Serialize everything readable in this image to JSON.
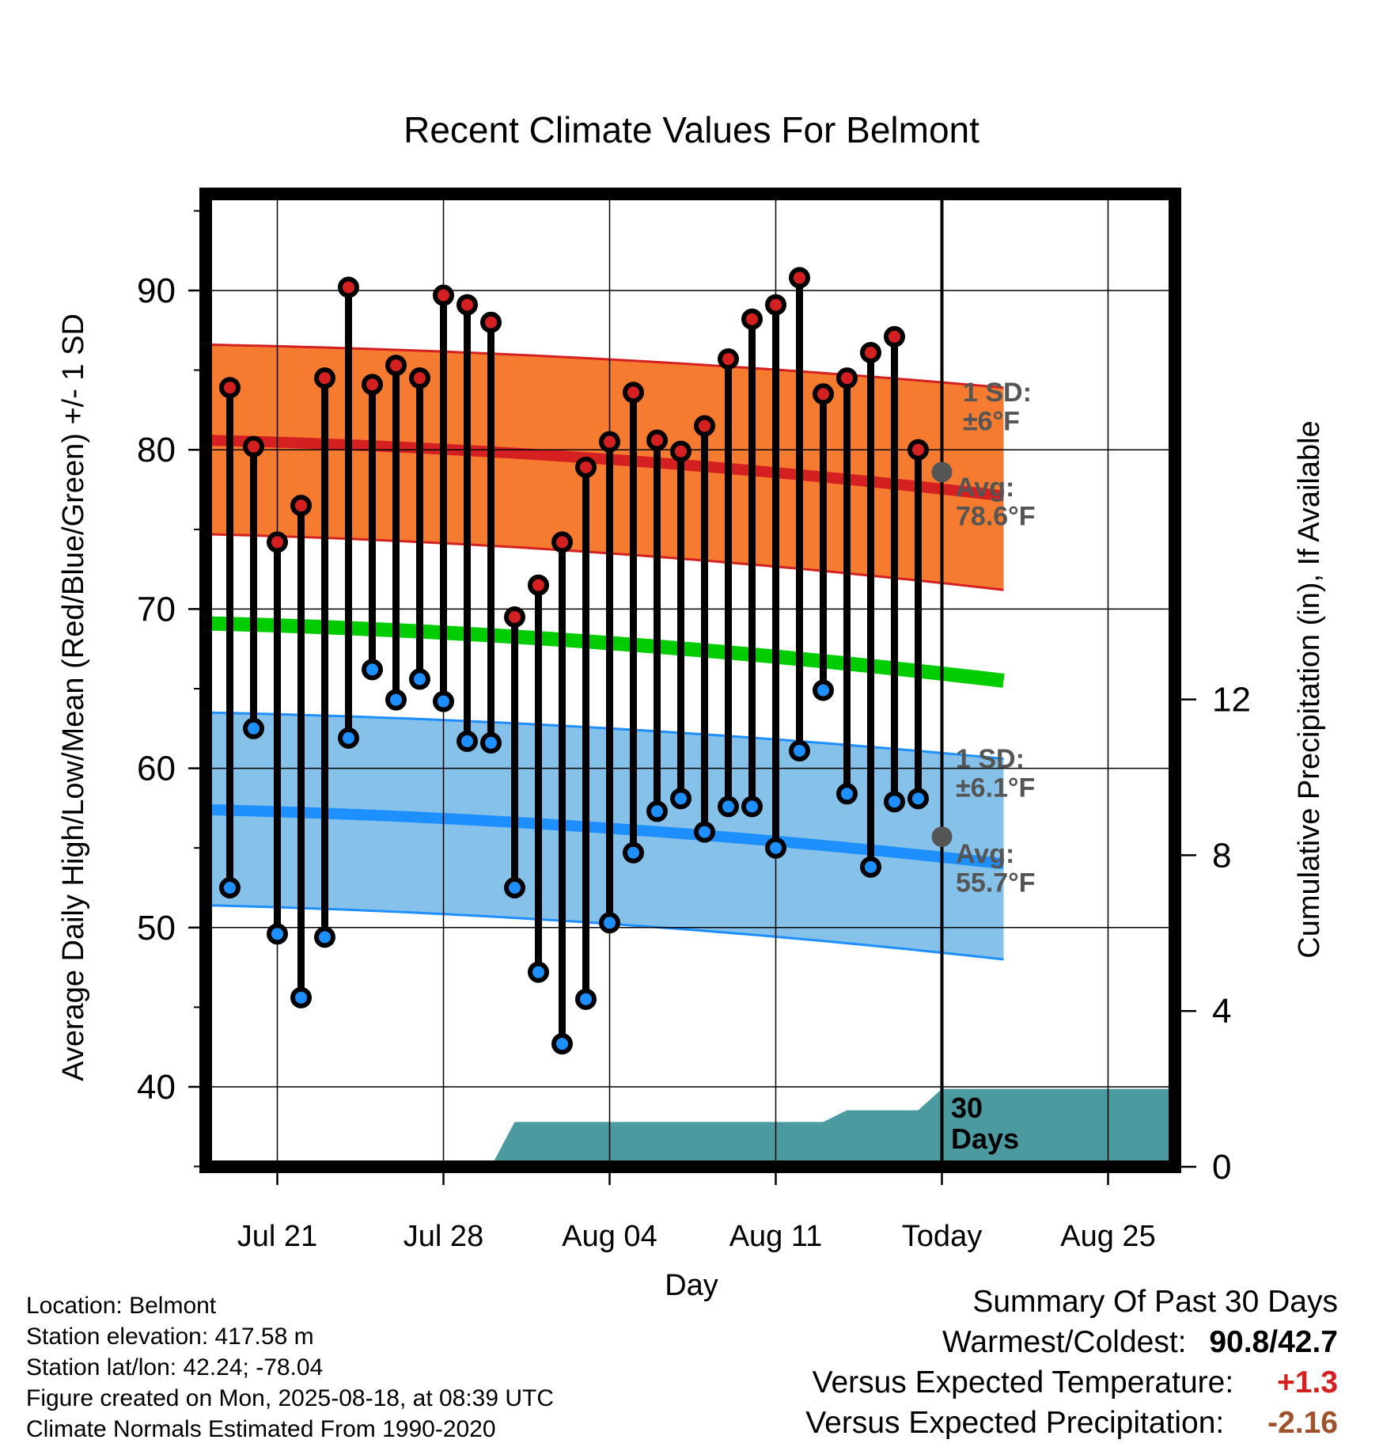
{
  "chart_data": {
    "type": "line",
    "title": "Recent Climate Values For Belmont",
    "xlabel": "Day",
    "ylabel": "Average Daily High/Low/Mean (Red/Blue/Green) +/- 1 SD",
    "y2label": "Cumulative Precipitation (in), If Available",
    "ylim": [
      35,
      96
    ],
    "y2lim": [
      0,
      25
    ],
    "y_ticks": [
      40,
      50,
      60,
      70,
      80,
      90
    ],
    "y2_ticks": [
      0,
      4,
      8,
      12
    ],
    "x_ticks": [
      "Jul 21",
      "Jul 28",
      "Aug 04",
      "Aug 11",
      "Today",
      "Aug 25"
    ],
    "grid": true,
    "dates": [
      "Jul 19",
      "Jul 20",
      "Jul 21",
      "Jul 22",
      "Jul 23",
      "Jul 24",
      "Jul 25",
      "Jul 26",
      "Jul 27",
      "Jul 28",
      "Jul 29",
      "Jul 30",
      "Jul 31",
      "Aug 01",
      "Aug 02",
      "Aug 03",
      "Aug 04",
      "Aug 05",
      "Aug 06",
      "Aug 07",
      "Aug 08",
      "Aug 09",
      "Aug 10",
      "Aug 11",
      "Aug 12",
      "Aug 13",
      "Aug 14",
      "Aug 15",
      "Aug 16",
      "Aug 17"
    ],
    "series": [
      {
        "name": "High",
        "color": "#d42020",
        "values": [
          83.9,
          80.2,
          74.2,
          76.5,
          84.5,
          90.2,
          84.1,
          85.3,
          84.5,
          89.7,
          89.1,
          88.0,
          69.5,
          71.5,
          74.2,
          78.9,
          80.5,
          83.6,
          80.6,
          79.9,
          81.5,
          85.7,
          88.2,
          89.1,
          90.8,
          83.5,
          84.5,
          86.1,
          87.1,
          80.0
        ]
      },
      {
        "name": "Low",
        "color": "#1e8fff",
        "values": [
          52.5,
          62.5,
          49.6,
          45.6,
          49.4,
          61.9,
          66.2,
          64.3,
          65.6,
          64.2,
          61.7,
          61.6,
          52.5,
          47.2,
          42.7,
          45.5,
          50.3,
          54.7,
          57.3,
          58.1,
          56.0,
          57.6,
          57.6,
          55.0,
          61.1,
          64.9,
          58.4,
          53.8,
          57.9,
          58.1
        ]
      }
    ],
    "normals": {
      "high_avg": [
        80.6,
        77.1
      ],
      "high_sd_upper": [
        86.6,
        83.9
      ],
      "high_sd_lower": [
        74.7,
        71.2
      ],
      "mean_avg": [
        69.1,
        65.5
      ],
      "low_avg": [
        57.4,
        54.0
      ],
      "low_sd_upper": [
        63.5,
        60.6
      ],
      "low_sd_lower": [
        51.4,
        48.0
      ]
    },
    "precipitation_cumulative": {
      "dates": [
        "Jul 19",
        "Jul 30",
        "Jul 31",
        "Aug 12",
        "Aug 13",
        "Aug 16",
        "Aug 17",
        "Aug 27"
      ],
      "values": [
        0,
        0,
        1.15,
        1.15,
        1.45,
        1.45,
        2.0,
        2.0
      ]
    },
    "annotations": {
      "high_sd": [
        "1 SD:",
        "±6°F"
      ],
      "high_avg": [
        "Avg:",
        "78.6°F"
      ],
      "low_sd": [
        "1 SD:",
        "±6.1°F"
      ],
      "low_avg": [
        "Avg:",
        "55.7°F"
      ],
      "period": [
        "30",
        "Days"
      ]
    }
  },
  "info": {
    "location": "Location: Belmont",
    "elevation": "Station elevation: 417.58 m",
    "latlon": "Station lat/lon: 42.24; -78.04",
    "created": "Figure created on Mon, 2025-08-18, at 08:39 UTC",
    "normals": "Climate Normals Estimated From 1990-2020"
  },
  "summary": {
    "title": "Summary Of Past 30 Days",
    "warm_cold_label": "Warmest/Coldest:",
    "warm_cold_value": "90.8/42.7",
    "temp_label": "Versus Expected Temperature:",
    "temp_value": "+1.3",
    "temp_color": "#d42020",
    "precip_label": "Versus Expected Precipitation:",
    "precip_value": "-2.16",
    "precip_color": "#a0522d"
  }
}
